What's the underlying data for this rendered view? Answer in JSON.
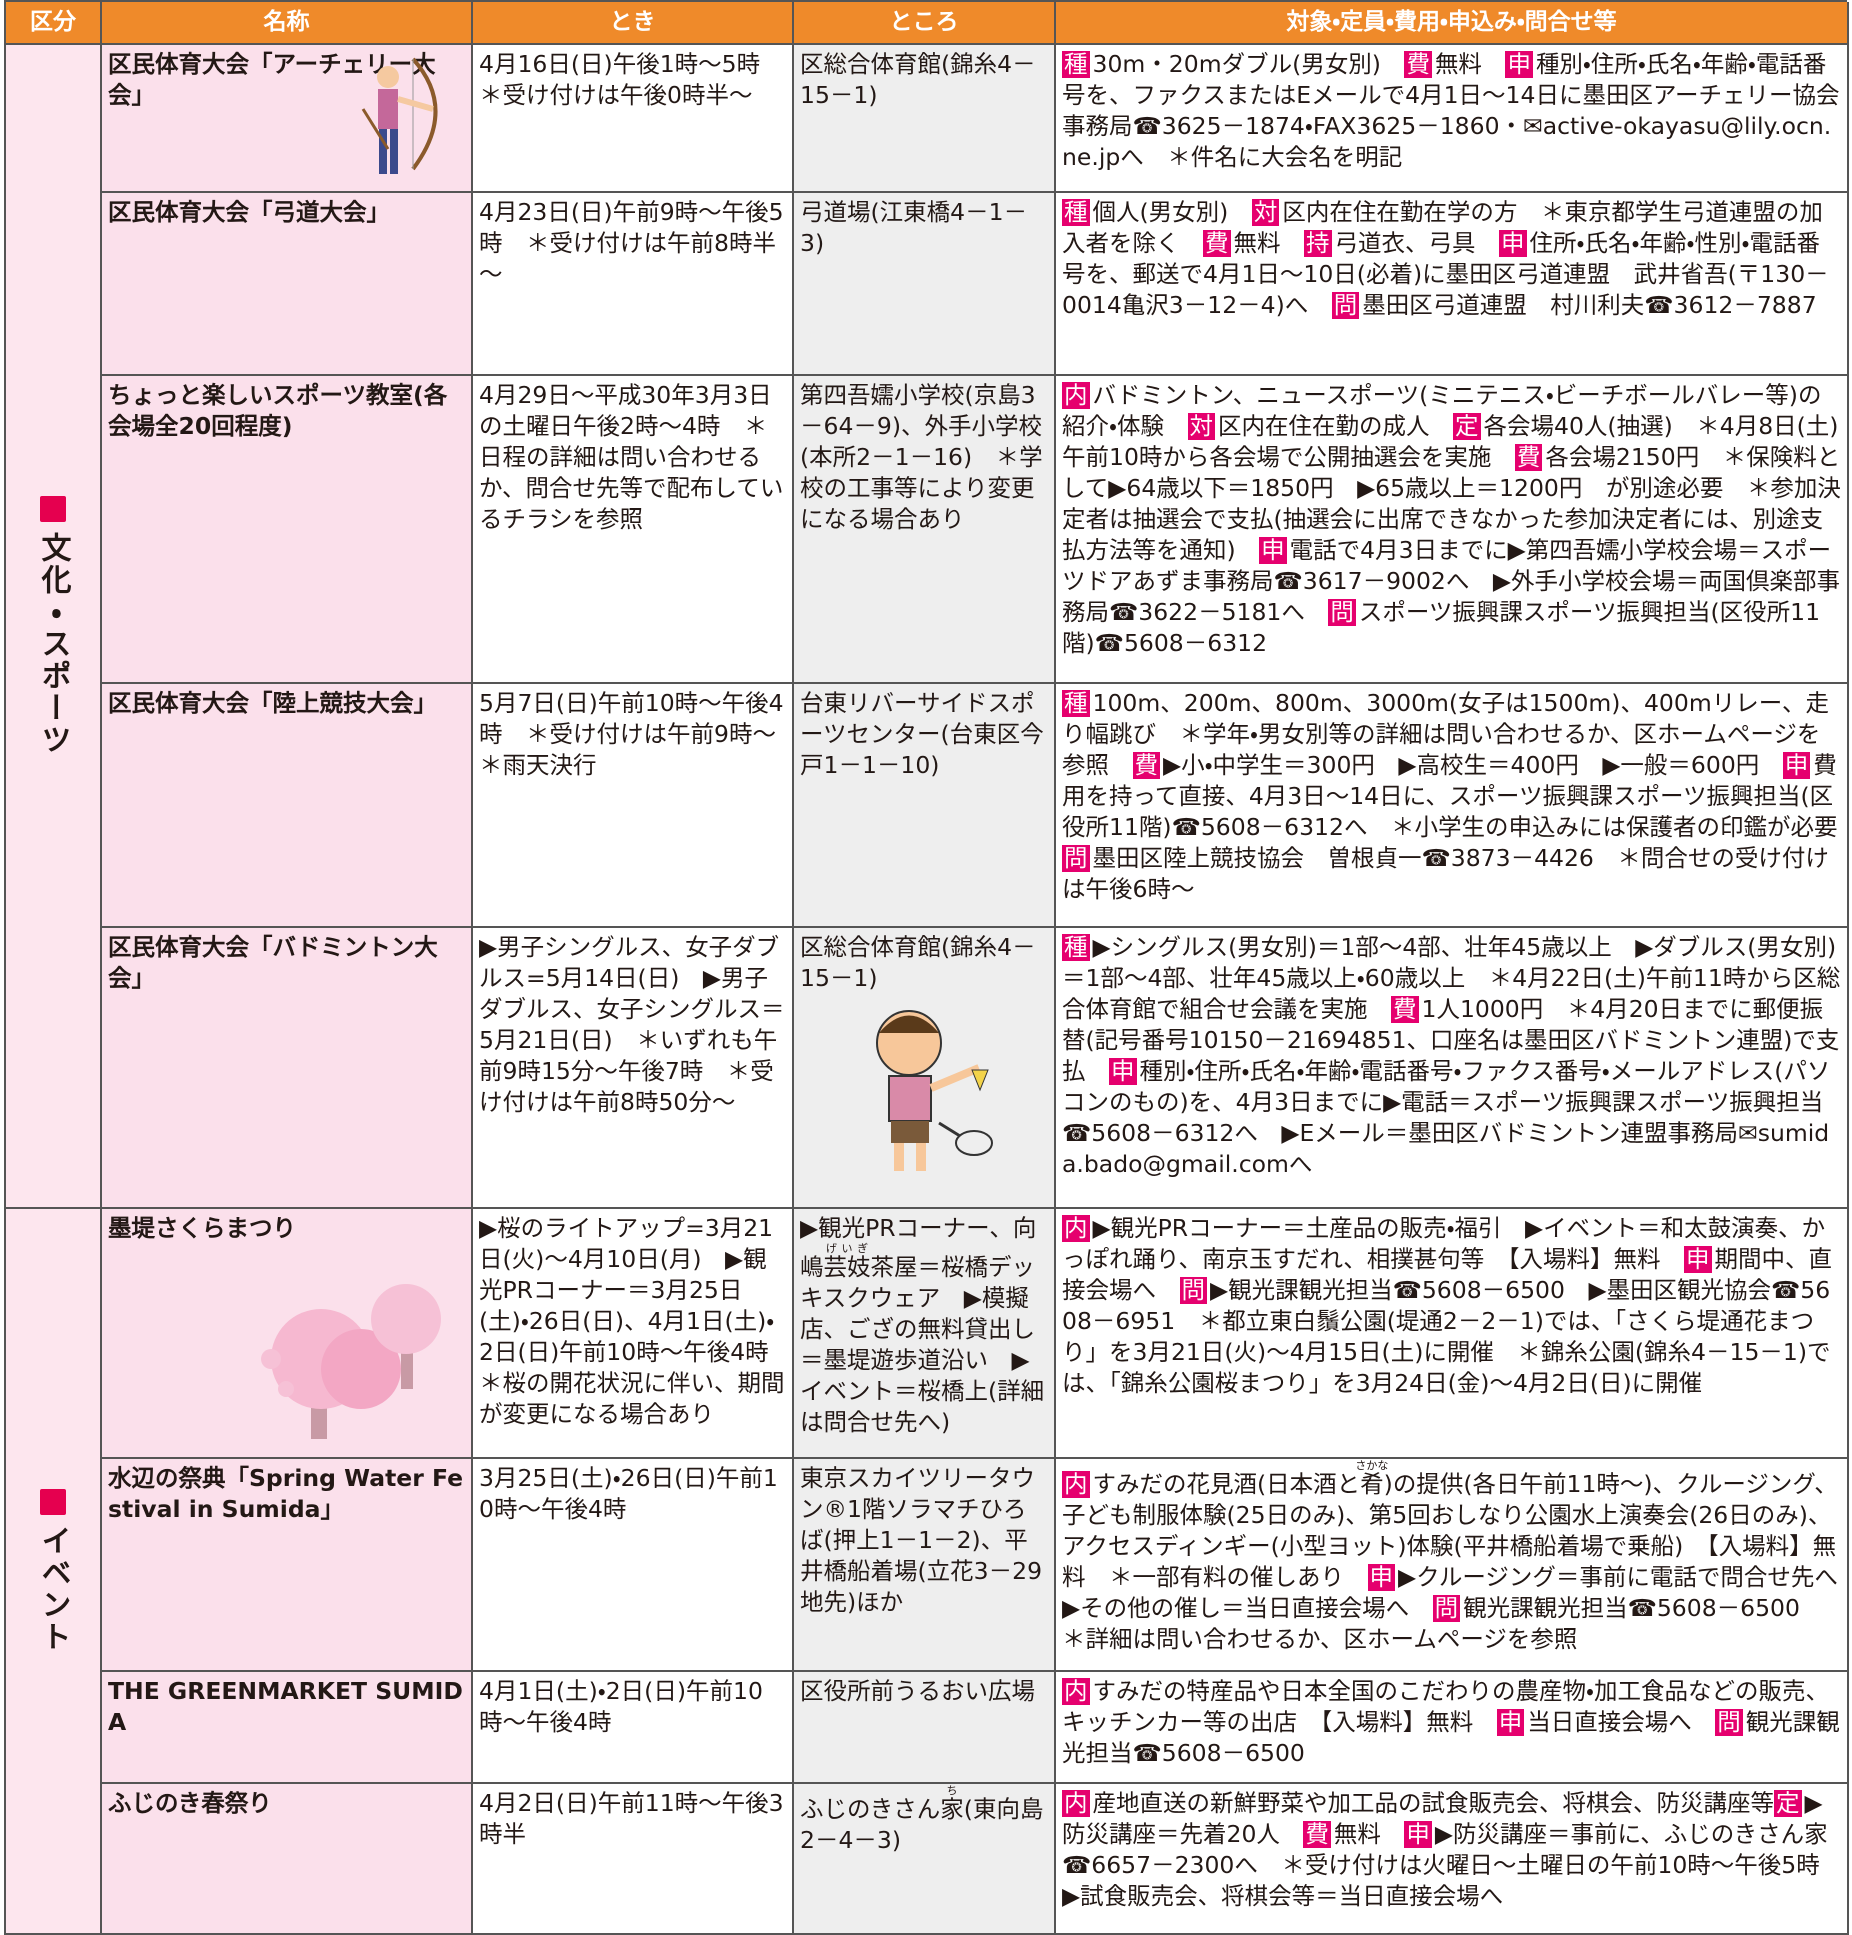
{
  "header": [
    "区分",
    "名称",
    "とき",
    "ところ",
    "対象・定員・費用・申込み・問合せ等"
  ],
  "groups": [
    {
      "category": "文化・スポーツ",
      "rows": [
        {
          "name": "区民体育大会「アーチェリー大会」",
          "time": "4月16日(日)午後1時～5時　＊受け付けは午後0時半～",
          "place": "区総合体育館(錦糸4－15－1)",
          "details": [
            {
              "tag": "種",
              "text": "30m・20mダブル(男女別)　"
            },
            {
              "tag": "費",
              "text": "無料　"
            },
            {
              "tag": "申",
              "text": "種別・住所・氏名・年齢・電話番号を、ファクスまたはEメールで4月1日～14日に墨田区アーチェリー協会事務局☎3625－1874・FAX3625－1860・✉active-okayasu@lily.ocn.ne.jpへ　＊件名に大会名を明記"
            }
          ]
        },
        {
          "name": "区民体育大会「弓道大会」",
          "time": "4月23日(日)午前9時～午後5時　＊受け付けは午前8時半～",
          "place": "弓道場(江東橋4－1－3)",
          "details": [
            {
              "tag": "種",
              "text": "個人(男女別)　"
            },
            {
              "tag": "対",
              "text": "区内在住在勤在学の方　＊東京都学生弓道連盟の加入者を除く　"
            },
            {
              "tag": "費",
              "text": "無料　"
            },
            {
              "tag": "持",
              "text": "弓道衣、弓具　"
            },
            {
              "tag": "申",
              "text": "住所・氏名・年齢・性別・電話番号を、郵送で4月1日～10日(必着)に墨田区弓道連盟　武井省吾(〒130－0014亀沢3－12－4)へ　"
            },
            {
              "tag": "問",
              "text": "墨田区弓道連盟　村川利夫☎3612－7887"
            }
          ]
        },
        {
          "name": "ちょっと楽しいスポーツ教室(各会場全20回程度)",
          "time": "4月29日～平成30年3月3日の土曜日午後2時～4時　＊日程の詳細は問い合わせるか、問合せ先等で配布しているチラシを参照",
          "place": "第四吾嬬小学校(京島3－64－9)、外手小学校(本所2－1－16)　＊学校の工事等により変更になる場合あり",
          "details": [
            {
              "tag": "内",
              "text": "バドミントン、ニュースポーツ(ミニテニス・ビーチボールバレー等)の紹介・体験　"
            },
            {
              "tag": "対",
              "text": "区内在住在勤の成人　"
            },
            {
              "tag": "定",
              "text": "各会場40人(抽選)　＊4月8日(土)午前10時から各会場で公開抽選会を実施　"
            },
            {
              "tag": "費",
              "text": "各会場2150円　＊保険料として▶64歳以下＝1850円　▶65歳以上＝1200円　が別途必要　＊参加決定者は抽選会で支払(抽選会に出席できなかった参加決定者には、別途支払方法等を通知)　"
            },
            {
              "tag": "申",
              "text": "電話で4月3日までに▶第四吾嬬小学校会場＝スポーツドアあずま事務局☎3617－9002へ　▶外手小学校会場＝両国倶楽部事務局☎3622－5181へ　"
            },
            {
              "tag": "問",
              "text": "スポーツ振興課スポーツ振興担当(区役所11階)☎5608－6312"
            }
          ]
        },
        {
          "name": "区民体育大会「陸上競技大会」",
          "time": "5月7日(日)午前10時～午後4時　＊受け付けは午前9時～　＊雨天決行",
          "place": "台東リバーサイドスポーツセンター(台東区今戸1－1－10)",
          "details": [
            {
              "tag": "種",
              "text": "100m、200m、800m、3000m(女子は1500m)、400mリレー、走り幅跳び　＊学年・男女別等の詳細は問い合わせるか、区ホームページを参照　"
            },
            {
              "tag": "費",
              "text": "▶小・中学生＝300円　▶高校生＝400円　▶一般＝600円　"
            },
            {
              "tag": "申",
              "text": "費用を持って直接、4月3日～14日に、スポーツ振興課スポーツ振興担当(区役所11階)☎5608－6312へ　＊小学生の申込みには保護者の印鑑が必要　"
            },
            {
              "tag": "問",
              "text": "墨田区陸上競技協会　曽根貞一☎3873－4426　＊問合せの受け付けは午後6時～"
            }
          ]
        },
        {
          "name": "区民体育大会「バドミントン大会」",
          "time": "▶男子シングルス、女子ダブルス=5月14日(日)　▶男子ダブルス、女子シングルス＝5月21日(日)　＊いずれも午前9時15分～午後7時　＊受け付けは午前8時50分～",
          "place": "区総合体育館(錦糸4－15－1)",
          "details": [
            {
              "tag": "種",
              "text": "▶シングルス(男女別)＝1部～4部、壮年45歳以上　▶ダブルス(男女別)＝1部～4部、壮年45歳以上・60歳以上　＊4月22日(土)午前11時から区総合体育館で組合せ会議を実施　"
            },
            {
              "tag": "費",
              "text": "1人1000円　＊4月20日までに郵便振替(記号番号10150－21694851、口座名は墨田区バドミントン連盟)で支払　"
            },
            {
              "tag": "申",
              "text": "種別・住所・氏名・年齢・電話番号・ファクス番号・メールアドレス(パソコンのもの)を、4月3日までに▶電話＝スポーツ振興課スポーツ振興担当☎5608－6312へ　▶Eメール＝墨田区バドミントン連盟事務局✉sumida.bado@gmail.comへ"
            }
          ]
        }
      ]
    },
    {
      "category": "イベント",
      "rows": [
        {
          "name": "墨堤さくらまつり",
          "time": "▶桜のライトアップ=3月21日(火)～4月10日(月)　▶観光PRコーナー＝3月25日(土)・26日(日)、4月1日(土)・2日(日)午前10時～午後4時　＊桜の開花状況に伴い、期間が変更になる場合あり",
          "place": [
            "▶観光PRコーナー、向嶋",
            {
              "base": "芸妓",
              "ruby": "げいぎ"
            },
            "茶屋＝桜橋デッキスクウェア　▶模擬店、ござの無料貸出し＝墨堤遊歩道沿い　▶イベント＝桜橋上(詳細は問合せ先へ)"
          ],
          "details": [
            {
              "tag": "内",
              "text": "▶観光PRコーナー＝土産品の販売・福引　▶イベント＝和太鼓演奏、かっぽれ踊り、南京玉すだれ、相撲甚句等　【入場料】無料　"
            },
            {
              "tag": "申",
              "text": "期間中、直接会場へ　"
            },
            {
              "tag": "問",
              "text": "▶観光課観光担当☎5608－6500　▶墨田区観光協会☎5608－6951　＊都立東白鬚公園(堤通2－2－1)では、「さくら堤通花まつり」を3月21日(火)～4月15日(土)に開催　＊錦糸公園(錦糸4－15－1)では、「錦糸公園桜まつり」を3月24日(金)～4月2日(日)に開催"
            }
          ]
        },
        {
          "name": "水辺の祭典「Spring Water Festival in Sumida」",
          "time": "3月25日(土)・26日(日)午前10時～午後4時",
          "place": "東京スカイツリータウン®1階ソラマチひろば(押上1－1－2)、平井橋船着場(立花3－29地先)ほか",
          "details": [
            {
              "tag": "内",
              "text": [
                "すみだの花見酒(日本酒と",
                {
                  "base": "肴",
                  "ruby": "さかな"
                },
                ")の提供(各日午前11時～)、クルージング、子ども制服体験(25日のみ)、第5回おしなり公園水上演奏会(26日のみ)、アクセスディンギー(小型ヨット)体験(平井橋船着場で乗船)　【入場料】無料　＊一部有料の催しあり　"
              ]
            },
            {
              "tag": "申",
              "text": "▶クルージング＝事前に電話で問合せ先へ　▶その他の催し＝当日直接会場へ　"
            },
            {
              "tag": "問",
              "text": "観光課観光担当☎5608－6500　＊詳細は問い合わせるか、区ホームページを参照"
            }
          ]
        },
        {
          "name": "THE GREENMARKET SUMIDA",
          "time": "4月1日(土)・2日(日)午前10時～午後4時",
          "place": "区役所前うるおい広場",
          "details": [
            {
              "tag": "内",
              "text": "すみだの特産品や日本全国のこだわりの農産物・加工食品などの販売、キッチンカー等の出店　【入場料】無料　"
            },
            {
              "tag": "申",
              "text": "当日直接会場へ　"
            },
            {
              "tag": "問",
              "text": "観光課観光担当☎5608－6500"
            }
          ]
        },
        {
          "name": "ふじのき春祭り",
          "time": "4月2日(日)午前11時～午後3時半",
          "place": [
            "ふじのきさん",
            {
              "base": "家",
              "ruby": "ち"
            },
            "(東向島2－4－3)"
          ],
          "details": [
            {
              "tag": "内",
              "text": "産地直送の新鮮野菜や加工品の試食販売会、将棋会、防災講座等"
            },
            {
              "tag": "定",
              "text": "▶防災講座＝先着20人　"
            },
            {
              "tag": "費",
              "text": "無料　"
            },
            {
              "tag": "申",
              "text": "▶防災講座＝事前に、ふじのきさん家☎6657－2300へ　＊受け付けは火曜日～土曜日の午前10時～午後5時　▶試食販売会、将棋会等＝当日直接会場へ"
            }
          ]
        }
      ]
    }
  ]
}
